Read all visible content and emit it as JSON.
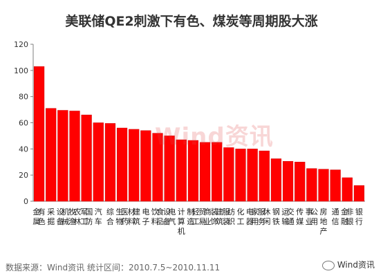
{
  "chart_data": {
    "type": "bar",
    "title": "美联储QE2刺激下有色、煤炭等周期股大涨",
    "categories": [
      "有色金属",
      "采掘",
      "机械设备",
      "农林牧渔",
      "国防军工",
      "汽车",
      "综合",
      "医药生物",
      "建筑材料",
      "电子",
      "食品饮料",
      "电气设备",
      "计算机",
      "轻工制造",
      "商业贸易",
      "建筑装饰",
      "纺织服装",
      "化工",
      "家用电器",
      "休闲服务",
      "钢铁",
      "交通运输",
      "传媒",
      "公用事业",
      "房地产",
      "通信",
      "非银金融",
      "银行"
    ],
    "values": [
      103,
      71,
      69.5,
      69,
      66,
      60,
      59.5,
      56,
      55,
      54,
      52,
      50,
      47,
      46.5,
      45,
      45,
      41,
      40,
      40,
      38.5,
      32.5,
      30.5,
      30,
      25,
      24.5,
      24,
      18,
      12
    ],
    "ylim": [
      0,
      120
    ],
    "yticks": [
      0,
      20,
      40,
      60,
      80,
      100,
      120
    ],
    "xlabel": "",
    "ylabel": "",
    "grid": false,
    "bar_color": "#ff0000",
    "bar_edge_color": "#cc0000"
  },
  "footer": {
    "source": "数据来源：Wind资讯  统计区间：2010.7.5~2010.11.11",
    "brand": "Wind资讯"
  },
  "watermark": "Wind资讯"
}
